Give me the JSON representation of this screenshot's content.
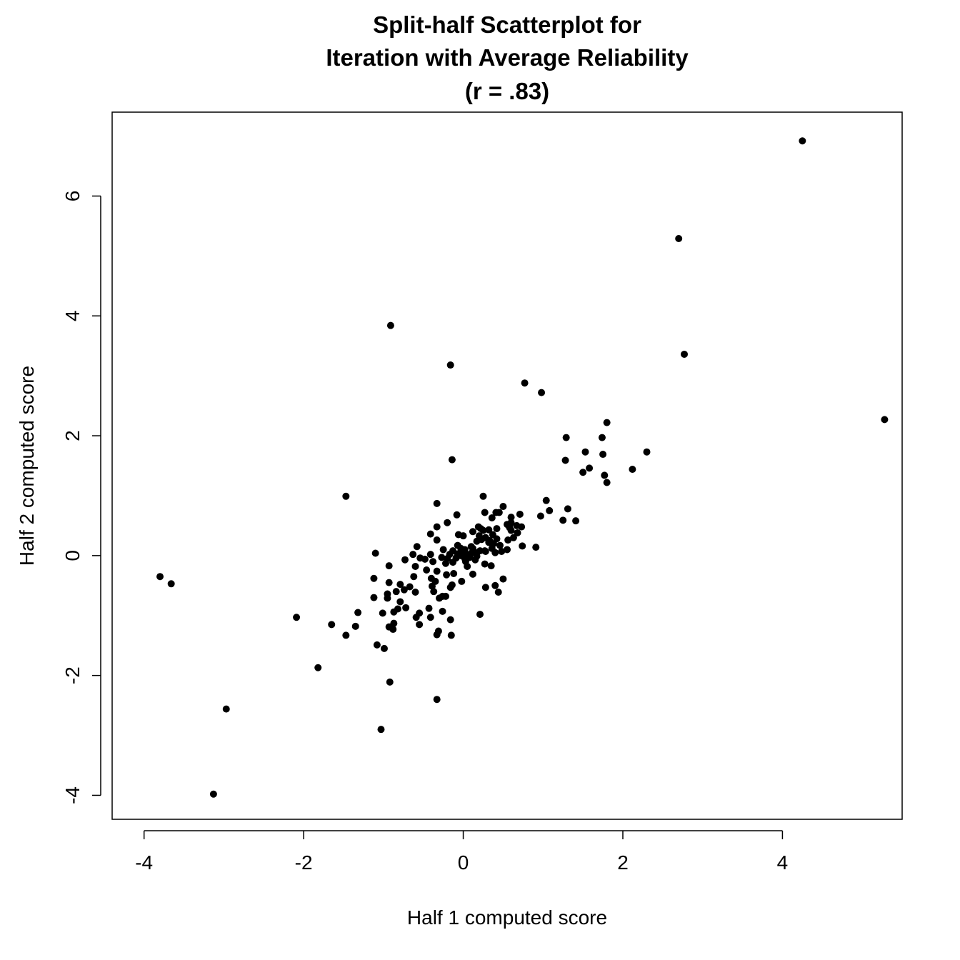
{
  "chart_data": {
    "type": "scatter",
    "title": [
      "Split-half Scatterplot for",
      "Iteration with Average Reliability",
      "(r = .83)"
    ],
    "xlabel": "Half 1 computed score",
    "ylabel": "Half 2 computed score",
    "xlim": [
      -4.4,
      5.5
    ],
    "ylim": [
      -4.4,
      7.4
    ],
    "xticks": [
      -4,
      -2,
      0,
      2,
      4
    ],
    "xtick_labels": [
      "-4",
      "-2",
      "0",
      "2",
      "4"
    ],
    "yticks": [
      -4,
      -2,
      0,
      2,
      4,
      6
    ],
    "ytick_labels": [
      "-4",
      "-2",
      "0",
      "2",
      "4",
      "6"
    ],
    "grid": false,
    "point_color": "#000000",
    "points": [
      [
        4.25,
        6.92
      ],
      [
        2.7,
        5.29
      ],
      [
        2.77,
        3.36
      ],
      [
        5.28,
        2.27
      ],
      [
        -0.91,
        3.84
      ],
      [
        -0.16,
        3.18
      ],
      [
        0.77,
        2.88
      ],
      [
        0.98,
        2.72
      ],
      [
        1.8,
        2.22
      ],
      [
        1.29,
        1.97
      ],
      [
        1.74,
        1.97
      ],
      [
        2.3,
        1.73
      ],
      [
        1.53,
        1.73
      ],
      [
        1.75,
        1.69
      ],
      [
        1.28,
        1.59
      ],
      [
        -0.14,
        1.6
      ],
      [
        1.58,
        1.46
      ],
      [
        2.12,
        1.44
      ],
      [
        1.5,
        1.39
      ],
      [
        1.77,
        1.34
      ],
      [
        1.8,
        1.22
      ],
      [
        -1.47,
        0.99
      ],
      [
        0.25,
        0.99
      ],
      [
        1.04,
        0.92
      ],
      [
        -0.33,
        0.87
      ],
      [
        0.5,
        0.82
      ],
      [
        1.31,
        0.78
      ],
      [
        1.08,
        0.75
      ],
      [
        0.27,
        0.72
      ],
      [
        0.41,
        0.72
      ],
      [
        0.45,
        0.72
      ],
      [
        0.71,
        0.69
      ],
      [
        -0.08,
        0.68
      ],
      [
        0.97,
        0.66
      ],
      [
        0.6,
        0.64
      ],
      [
        0.36,
        0.63
      ],
      [
        1.25,
        0.59
      ],
      [
        1.41,
        0.58
      ],
      [
        -0.2,
        0.55
      ],
      [
        0.55,
        0.52
      ],
      [
        0.67,
        0.5
      ],
      [
        0.19,
        0.48
      ],
      [
        -0.33,
        0.48
      ],
      [
        0.58,
        0.47
      ],
      [
        0.73,
        0.48
      ],
      [
        0.22,
        0.45
      ],
      [
        0.42,
        0.45
      ],
      [
        0.32,
        0.43
      ],
      [
        0.25,
        0.42
      ],
      [
        0.6,
        0.42
      ],
      [
        0.68,
        0.38
      ],
      [
        -0.41,
        0.36
      ],
      [
        -0.06,
        0.35
      ],
      [
        0.0,
        0.33
      ],
      [
        0.2,
        0.33
      ],
      [
        0.28,
        0.3
      ],
      [
        0.42,
        0.28
      ],
      [
        -0.33,
        0.26
      ],
      [
        0.56,
        0.26
      ],
      [
        0.17,
        0.24
      ],
      [
        0.32,
        0.22
      ],
      [
        0.38,
        0.2
      ],
      [
        0.46,
        0.17
      ],
      [
        -0.07,
        0.17
      ],
      [
        0.74,
        0.16
      ],
      [
        0.91,
        0.14
      ],
      [
        0.55,
        0.1
      ],
      [
        0.12,
        0.12
      ],
      [
        0.36,
        0.12
      ],
      [
        0.02,
        0.1
      ],
      [
        0.21,
        0.08
      ],
      [
        0.28,
        0.07
      ],
      [
        0.11,
        0.05
      ],
      [
        -0.58,
        0.15
      ],
      [
        -1.1,
        0.04
      ],
      [
        -0.63,
        0.02
      ],
      [
        -0.41,
        0.02
      ],
      [
        -0.17,
        0.02
      ],
      [
        -0.03,
        0.0
      ],
      [
        0.05,
        0.01
      ],
      [
        0.17,
        -0.01
      ],
      [
        -0.73,
        -0.07
      ],
      [
        -0.54,
        -0.04
      ],
      [
        -0.48,
        -0.06
      ],
      [
        -0.27,
        -0.03
      ],
      [
        -0.09,
        -0.04
      ],
      [
        0.02,
        -0.05
      ],
      [
        -0.38,
        -0.1
      ],
      [
        -0.13,
        -0.11
      ],
      [
        -0.22,
        -0.13
      ],
      [
        0.27,
        -0.14
      ],
      [
        0.35,
        -0.17
      ],
      [
        -0.93,
        -0.17
      ],
      [
        -0.6,
        -0.18
      ],
      [
        -0.46,
        -0.24
      ],
      [
        -0.33,
        -0.26
      ],
      [
        -0.12,
        -0.3
      ],
      [
        -0.21,
        -0.32
      ],
      [
        0.12,
        -0.31
      ],
      [
        -0.62,
        -0.35
      ],
      [
        -0.4,
        -0.38
      ],
      [
        0.5,
        -0.39
      ],
      [
        -1.12,
        -0.38
      ],
      [
        -0.35,
        -0.43
      ],
      [
        -0.02,
        -0.43
      ],
      [
        -0.14,
        -0.49
      ],
      [
        -0.79,
        -0.48
      ],
      [
        -0.93,
        -0.45
      ],
      [
        -0.39,
        -0.51
      ],
      [
        0.4,
        -0.5
      ],
      [
        -0.67,
        -0.52
      ],
      [
        -0.16,
        -0.53
      ],
      [
        0.28,
        -0.53
      ],
      [
        -0.74,
        -0.57
      ],
      [
        -0.37,
        -0.6
      ],
      [
        -0.6,
        -0.61
      ],
      [
        -0.84,
        -0.6
      ],
      [
        0.44,
        -0.61
      ],
      [
        -0.95,
        -0.64
      ],
      [
        -1.12,
        -0.7
      ],
      [
        -0.95,
        -0.71
      ],
      [
        -0.3,
        -0.71
      ],
      [
        -0.26,
        -0.68
      ],
      [
        -0.22,
        -0.68
      ],
      [
        -0.79,
        -0.77
      ],
      [
        -0.82,
        -0.89
      ],
      [
        -0.72,
        -0.87
      ],
      [
        -0.43,
        -0.88
      ],
      [
        -0.26,
        -0.93
      ],
      [
        -0.87,
        -0.94
      ],
      [
        -1.01,
        -0.96
      ],
      [
        -0.55,
        -0.96
      ],
      [
        -1.32,
        -0.95
      ],
      [
        -0.41,
        -1.03
      ],
      [
        -0.59,
        -1.03
      ],
      [
        0.21,
        -0.98
      ],
      [
        -2.09,
        -1.03
      ],
      [
        -0.16,
        -1.07
      ],
      [
        -0.87,
        -1.13
      ],
      [
        -0.55,
        -1.15
      ],
      [
        -1.65,
        -1.15
      ],
      [
        -1.35,
        -1.18
      ],
      [
        -0.93,
        -1.19
      ],
      [
        -0.88,
        -1.23
      ],
      [
        -0.31,
        -1.26
      ],
      [
        -1.47,
        -1.33
      ],
      [
        -0.33,
        -1.32
      ],
      [
        -0.15,
        -1.33
      ],
      [
        -1.08,
        -1.49
      ],
      [
        -0.99,
        -1.55
      ],
      [
        -1.82,
        -1.87
      ],
      [
        -0.92,
        -2.11
      ],
      [
        -0.33,
        -2.4
      ],
      [
        -2.97,
        -2.56
      ],
      [
        -1.03,
        -2.9
      ],
      [
        -3.13,
        -3.98
      ],
      [
        -3.8,
        -0.35
      ],
      [
        -3.66,
        -0.47
      ],
      [
        0.27,
        0.08
      ],
      [
        0.08,
        0.02
      ],
      [
        -0.01,
        0.05
      ],
      [
        0.15,
        -0.07
      ],
      [
        0.08,
        -0.03
      ],
      [
        -0.07,
        0.03
      ],
      [
        0.1,
        0.15
      ],
      [
        0.33,
        0.25
      ],
      [
        0.03,
        -0.1
      ],
      [
        -0.2,
        -0.05
      ],
      [
        0.4,
        0.05
      ],
      [
        0.48,
        0.07
      ],
      [
        -0.13,
        0.08
      ],
      [
        0.23,
        0.27
      ],
      [
        0.63,
        0.3
      ],
      [
        0.6,
        0.55
      ],
      [
        0.37,
        0.35
      ],
      [
        0.15,
        0.05
      ],
      [
        -0.03,
        0.12
      ],
      [
        0.05,
        -0.18
      ],
      [
        -0.25,
        0.1
      ],
      [
        0.12,
        0.4
      ]
    ]
  }
}
